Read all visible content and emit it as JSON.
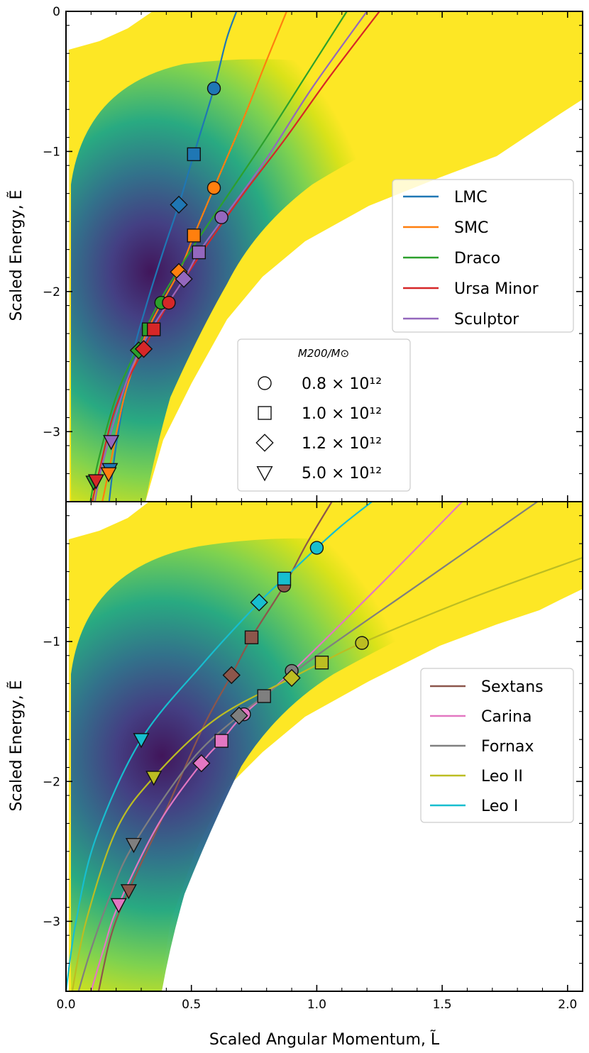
{
  "chart_data": [
    {
      "type": "line",
      "panel": "top",
      "xlabel": "Scaled Angular Momentum, L̃",
      "ylabel": "Scaled Energy, Ẽ",
      "xlim": [
        0,
        2.06
      ],
      "ylim": [
        -3.5,
        0
      ],
      "yticks": [
        0,
        -1,
        -2,
        -3
      ],
      "yticklabels": [
        "0",
        "−1",
        "−2",
        "−3"
      ],
      "legend_position": "right",
      "series": [
        {
          "name": "LMC",
          "color": "#1f77b4",
          "curve": [
            [
              0.172,
              -3.5
            ],
            [
              0.2,
              -3.1
            ],
            [
              0.26,
              -2.5
            ],
            [
              0.32,
              -2.1
            ],
            [
              0.39,
              -1.7
            ],
            [
              0.45,
              -1.38
            ],
            [
              0.51,
              -1.02
            ],
            [
              0.59,
              -0.55
            ],
            [
              0.64,
              -0.2
            ],
            [
              0.68,
              0
            ]
          ],
          "markers": [
            [
              0.59,
              -0.55
            ],
            [
              0.51,
              -1.02
            ],
            [
              0.45,
              -1.38
            ],
            [
              0.175,
              -3.27
            ]
          ]
        },
        {
          "name": "SMC",
          "color": "#ff7f0e",
          "curve": [
            [
              0.145,
              -3.5
            ],
            [
              0.18,
              -3.2
            ],
            [
              0.24,
              -2.7
            ],
            [
              0.33,
              -2.26
            ],
            [
              0.45,
              -1.86
            ],
            [
              0.51,
              -1.6
            ],
            [
              0.59,
              -1.26
            ],
            [
              0.7,
              -0.8
            ],
            [
              0.8,
              -0.35
            ],
            [
              0.88,
              0
            ]
          ],
          "markers": [
            [
              0.59,
              -1.26
            ],
            [
              0.51,
              -1.6
            ],
            [
              0.45,
              -1.86
            ],
            [
              0.17,
              -3.3
            ]
          ]
        },
        {
          "name": "Draco",
          "color": "#2ca02c",
          "curve": [
            [
              0.097,
              -3.5
            ],
            [
              0.13,
              -3.2
            ],
            [
              0.2,
              -2.75
            ],
            [
              0.28,
              -2.42
            ],
            [
              0.37,
              -2.08
            ],
            [
              0.5,
              -1.7
            ],
            [
              0.65,
              -1.3
            ],
            [
              0.8,
              -0.9
            ],
            [
              0.96,
              -0.45
            ],
            [
              1.12,
              0
            ]
          ],
          "markers": [
            [
              0.38,
              -2.08
            ],
            [
              0.33,
              -2.27
            ],
            [
              0.29,
              -2.42
            ],
            [
              0.11,
              -3.36
            ]
          ]
        },
        {
          "name": "Ursa Minor",
          "color": "#d62728",
          "curve": [
            [
              0.105,
              -3.5
            ],
            [
              0.13,
              -3.3
            ],
            [
              0.2,
              -2.82
            ],
            [
              0.31,
              -2.41
            ],
            [
              0.41,
              -2.08
            ],
            [
              0.55,
              -1.7
            ],
            [
              0.7,
              -1.32
            ],
            [
              0.87,
              -0.92
            ],
            [
              1.05,
              -0.47
            ],
            [
              1.25,
              0
            ]
          ],
          "markers": [
            [
              0.41,
              -2.08
            ],
            [
              0.35,
              -2.27
            ],
            [
              0.31,
              -2.41
            ],
            [
              0.12,
              -3.35
            ]
          ]
        },
        {
          "name": "Sculptor",
          "color": "#9467bd",
          "curve": [
            [
              0.115,
              -3.5
            ],
            [
              0.15,
              -3.2
            ],
            [
              0.24,
              -2.65
            ],
            [
              0.33,
              -2.3
            ],
            [
              0.47,
              -1.91
            ],
            [
              0.53,
              -1.72
            ],
            [
              0.63,
              -1.47
            ],
            [
              0.8,
              -1.05
            ],
            [
              0.98,
              -0.55
            ],
            [
              1.2,
              0
            ]
          ],
          "markers": [
            [
              0.62,
              -1.47
            ],
            [
              0.53,
              -1.72
            ],
            [
              0.47,
              -1.91
            ],
            [
              0.18,
              -3.07
            ]
          ]
        }
      ],
      "mass_legend": {
        "title": "M200/M⊙",
        "entries": [
          {
            "marker": "circle",
            "label": "0.8 × 10¹²"
          },
          {
            "marker": "square",
            "label": "1.0 × 10¹²"
          },
          {
            "marker": "diamond",
            "label": "1.2 × 10¹²"
          },
          {
            "marker": "triangle-down",
            "label": "5.0 × 10¹²"
          }
        ]
      }
    },
    {
      "type": "line",
      "panel": "bottom",
      "xlabel": "Scaled Angular Momentum, L̃",
      "ylabel": "Scaled Energy, Ẽ",
      "xlim": [
        0,
        2.06
      ],
      "ylim": [
        -3.5,
        0
      ],
      "xticks": [
        0.0,
        0.5,
        1.0,
        1.5,
        2.0
      ],
      "xticklabels": [
        "0.0",
        "0.5",
        "1.0",
        "1.5",
        "2.0"
      ],
      "yticks": [
        -1,
        -2,
        -3
      ],
      "yticklabels": [
        "−1",
        "−2",
        "−3"
      ],
      "legend_position": "right",
      "series": [
        {
          "name": "Sextans",
          "color": "#8c564b",
          "curve": [
            [
              0.13,
              -3.5
            ],
            [
              0.18,
              -3.1
            ],
            [
              0.25,
              -2.78
            ],
            [
              0.4,
              -2.2
            ],
            [
              0.55,
              -1.6
            ],
            [
              0.66,
              -1.24
            ],
            [
              0.74,
              -0.97
            ],
            [
              0.87,
              -0.6
            ],
            [
              0.96,
              -0.3
            ],
            [
              1.06,
              0
            ]
          ],
          "markers": [
            [
              0.87,
              -0.6
            ],
            [
              0.74,
              -0.97
            ],
            [
              0.66,
              -1.24
            ],
            [
              0.25,
              -2.78
            ]
          ]
        },
        {
          "name": "Carina",
          "color": "#e377c2",
          "curve": [
            [
              0.1,
              -3.5
            ],
            [
              0.15,
              -3.2
            ],
            [
              0.21,
              -2.88
            ],
            [
              0.37,
              -2.3
            ],
            [
              0.54,
              -1.87
            ],
            [
              0.62,
              -1.71
            ],
            [
              0.71,
              -1.52
            ],
            [
              0.91,
              -1.2
            ],
            [
              1.25,
              -0.6
            ],
            [
              1.58,
              0
            ]
          ],
          "markers": [
            [
              0.71,
              -1.52
            ],
            [
              0.62,
              -1.71
            ],
            [
              0.54,
              -1.87
            ],
            [
              0.21,
              -2.88
            ]
          ]
        },
        {
          "name": "Fornax",
          "color": "#7f7f7f",
          "curve": [
            [
              0.05,
              -3.5
            ],
            [
              0.1,
              -3.2
            ],
            [
              0.18,
              -2.8
            ],
            [
              0.27,
              -2.45
            ],
            [
              0.5,
              -1.85
            ],
            [
              0.69,
              -1.53
            ],
            [
              0.79,
              -1.39
            ],
            [
              1.0,
              -1.1
            ],
            [
              1.4,
              -0.6
            ],
            [
              1.88,
              0
            ]
          ],
          "markers": [
            [
              0.9,
              -1.21
            ],
            [
              0.79,
              -1.39
            ],
            [
              0.69,
              -1.53
            ],
            [
              0.27,
              -2.45
            ]
          ]
        },
        {
          "name": "Leo II",
          "color": "#bcbd22",
          "curve": [
            [
              0.025,
              -3.5
            ],
            [
              0.08,
              -3.0
            ],
            [
              0.2,
              -2.35
            ],
            [
              0.35,
              -1.97
            ],
            [
              0.6,
              -1.55
            ],
            [
              0.9,
              -1.26
            ],
            [
              1.02,
              -1.15
            ],
            [
              1.18,
              -1.01
            ],
            [
              1.6,
              -0.7
            ],
            [
              2.06,
              -0.4
            ]
          ],
          "markers": [
            [
              1.18,
              -1.01
            ],
            [
              1.02,
              -1.15
            ],
            [
              0.9,
              -1.26
            ],
            [
              0.35,
              -1.97
            ]
          ]
        },
        {
          "name": "Leo I",
          "color": "#17becf",
          "curve": [
            [
              0.0,
              -3.5
            ],
            [
              0.04,
              -3.0
            ],
            [
              0.12,
              -2.4
            ],
            [
              0.3,
              -1.7
            ],
            [
              0.55,
              -1.15
            ],
            [
              0.77,
              -0.72
            ],
            [
              0.87,
              -0.55
            ],
            [
              1.0,
              -0.33
            ],
            [
              1.1,
              -0.17
            ],
            [
              1.22,
              0
            ]
          ],
          "markers": [
            [
              1.0,
              -0.33
            ],
            [
              0.87,
              -0.55
            ],
            [
              0.77,
              -0.72
            ],
            [
              0.3,
              -1.7
            ]
          ]
        }
      ]
    }
  ]
}
